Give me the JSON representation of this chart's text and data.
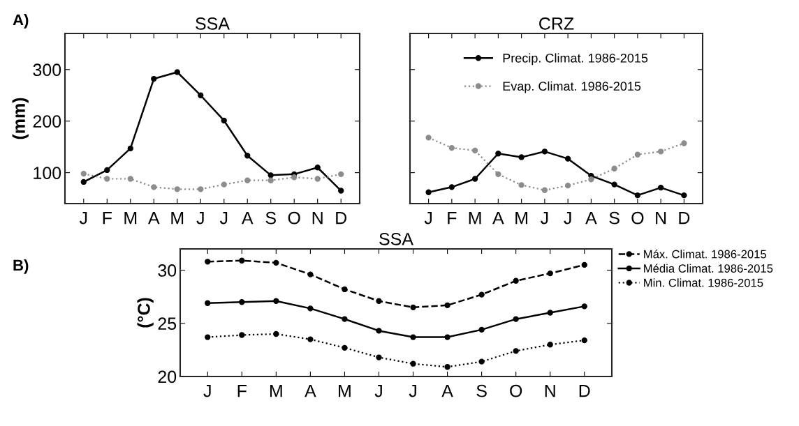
{
  "chart_data": [
    {
      "type": "line",
      "title": "SSA",
      "ylabel": "(mm)",
      "annotations": [
        "A)"
      ],
      "categories": [
        "J",
        "F",
        "M",
        "A",
        "M",
        "J",
        "J",
        "A",
        "S",
        "O",
        "N",
        "D"
      ],
      "ylim": [
        40,
        370
      ],
      "yticks": [
        100,
        200,
        300
      ],
      "marker": "circle",
      "series": [
        {
          "color": "#000000",
          "line_style": "solid",
          "values": [
            82,
            105,
            147,
            282,
            295,
            250,
            201,
            133,
            95,
            97,
            110,
            65
          ]
        },
        {
          "color": "#8c8c8c",
          "line_style": "dotted",
          "values": [
            98,
            88,
            88,
            72,
            68,
            68,
            77,
            85,
            85,
            91,
            88,
            97
          ]
        }
      ]
    },
    {
      "type": "line",
      "title": "CRZ",
      "categories": [
        "J",
        "F",
        "M",
        "A",
        "M",
        "J",
        "J",
        "A",
        "S",
        "O",
        "N",
        "D"
      ],
      "ylim": [
        40,
        370
      ],
      "yticks": [
        100,
        200,
        300
      ],
      "tick_labels": "x",
      "marker": "circle",
      "legend": "top",
      "series": [
        {
          "name": "Precip. Climat. 1986-2015",
          "color": "#000000",
          "line_style": "solid",
          "values": [
            62,
            72,
            88,
            137,
            130,
            141,
            127,
            94,
            77,
            56,
            71,
            56
          ]
        },
        {
          "name": "Evap. Climat. 1986-2015",
          "color": "#8c8c8c",
          "line_style": "dotted",
          "values": [
            168,
            148,
            143,
            97,
            76,
            66,
            75,
            87,
            108,
            135,
            141,
            157
          ]
        }
      ]
    },
    {
      "type": "line",
      "title": "SSA",
      "ylabel": "(°C)",
      "annotations": [
        "B)"
      ],
      "categories": [
        "J",
        "F",
        "M",
        "A",
        "M",
        "J",
        "J",
        "A",
        "S",
        "O",
        "N",
        "D"
      ],
      "ylim": [
        20,
        32
      ],
      "yticks": [
        20,
        25,
        30
      ],
      "marker": "circle",
      "legend": "right",
      "series": [
        {
          "name": "Máx. Climat. 1986-2015",
          "color": "#000000",
          "line_style": "dashed",
          "values": [
            30.8,
            30.9,
            30.7,
            29.6,
            28.2,
            27.1,
            26.5,
            26.7,
            27.7,
            29.0,
            29.7,
            30.5
          ]
        },
        {
          "name": "Média Climat. 1986-2015",
          "color": "#000000",
          "line_style": "solid",
          "values": [
            26.9,
            27.0,
            27.1,
            26.4,
            25.4,
            24.3,
            23.7,
            23.7,
            24.4,
            25.4,
            26.0,
            26.6
          ]
        },
        {
          "name": "Min. Climat. 1986-2015",
          "color": "#000000",
          "line_style": "dotted",
          "values": [
            23.7,
            23.9,
            24.0,
            23.5,
            22.7,
            21.8,
            21.2,
            20.9,
            21.4,
            22.4,
            23.0,
            23.4
          ]
        }
      ]
    }
  ]
}
